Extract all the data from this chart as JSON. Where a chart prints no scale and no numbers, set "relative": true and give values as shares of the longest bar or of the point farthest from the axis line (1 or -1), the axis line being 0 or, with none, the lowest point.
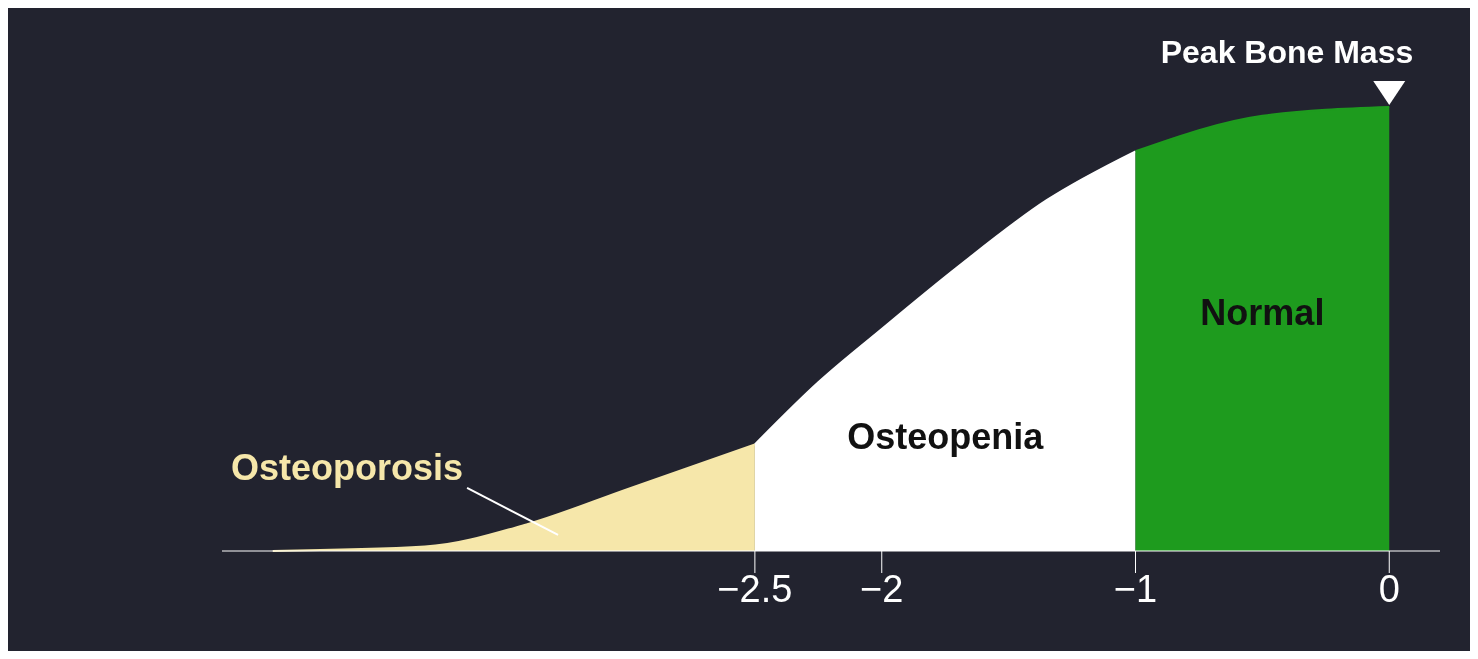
{
  "chart_data": {
    "type": "area",
    "relative": true,
    "x": [
      -4.4,
      -3.8,
      -3.4,
      -3.0,
      -2.5,
      -2.25,
      -2.0,
      -1.7,
      -1.35,
      -1.0,
      -0.5,
      0
    ],
    "xlim": [
      -4.6,
      0.2
    ],
    "xticks": [
      {
        "value": -2.5,
        "label": "−2.5"
      },
      {
        "value": -2,
        "label": "−2"
      },
      {
        "value": -1,
        "label": "−1"
      },
      {
        "value": 0,
        "label": "0"
      }
    ],
    "series": [
      {
        "name": "Osteoporosis",
        "color": "#f6e7aa",
        "values": [
          0,
          0.01,
          0.06,
          0.14,
          0.24,
          null,
          null,
          null,
          null,
          null,
          null,
          null
        ]
      },
      {
        "name": "Osteopenia",
        "color": "#ffffff",
        "values": [
          null,
          null,
          null,
          null,
          0.24,
          0.38,
          0.5,
          0.64,
          0.79,
          0.9,
          null,
          null
        ]
      },
      {
        "name": "Normal",
        "color": "#1e9b1e",
        "values": [
          null,
          null,
          null,
          null,
          null,
          null,
          null,
          null,
          null,
          0.9,
          0.98,
          1
        ]
      }
    ],
    "annotations": [
      {
        "text": "Peak Bone Mass",
        "x": 0,
        "y": 1
      }
    ]
  }
}
